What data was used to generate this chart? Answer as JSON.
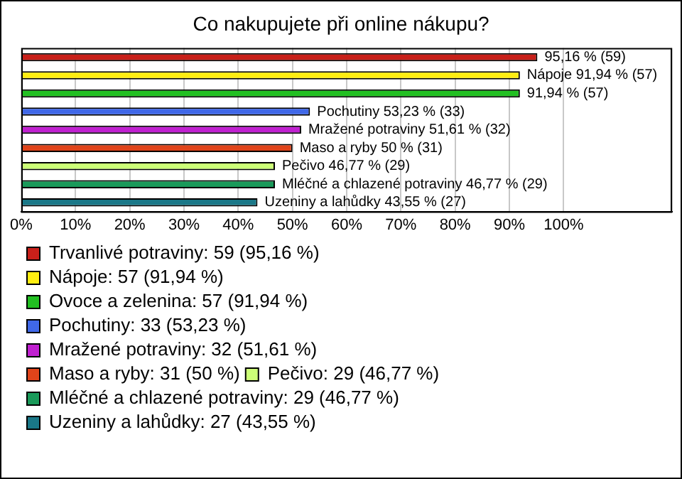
{
  "chart_data": {
    "type": "bar",
    "orientation": "horizontal",
    "title": "Co nakupujete při online nákupu?",
    "categories": [
      null,
      null,
      null,
      null,
      null,
      null,
      null,
      null,
      null
    ],
    "series": [
      {
        "name": "Trvanlivé potraviny: 59 (95,16 %)",
        "color": "#c8201a",
        "values": [
          95.16,
          null,
          null,
          null,
          null,
          null,
          null,
          null,
          null
        ],
        "value_labels": [
          "95,16 % (59)",
          null,
          null,
          null,
          null,
          null,
          null,
          null,
          null
        ]
      },
      {
        "name": "Nápoje: 57 (91,94 %)",
        "color": "#ffee11",
        "values": [
          null,
          91.94,
          null,
          null,
          null,
          null,
          null,
          null,
          null
        ],
        "value_labels": [
          null,
          "Nápoje 91,94 % (57)",
          null,
          null,
          null,
          null,
          null,
          null,
          null
        ]
      },
      {
        "name": "Ovoce a zelenina: 57 (91,94 %)",
        "color": "#22c022",
        "values": [
          null,
          null,
          91.94,
          null,
          null,
          null,
          null,
          null,
          null
        ],
        "value_labels": [
          null,
          null,
          "91,94 % (57)",
          null,
          null,
          null,
          null,
          null,
          null
        ]
      },
      {
        "name": "Pochutiny: 33 (53,23 %)",
        "color": "#4068e8",
        "values": [
          null,
          null,
          null,
          53.23,
          null,
          null,
          null,
          null,
          null
        ],
        "value_labels": [
          null,
          null,
          null,
          "Pochutiny 53,23 % (33)",
          null,
          null,
          null,
          null,
          null
        ]
      },
      {
        "name": "Mražené potraviny: 32 (51,61 %)",
        "color": "#c020d0",
        "values": [
          null,
          null,
          null,
          null,
          51.61,
          null,
          null,
          null,
          null
        ],
        "value_labels": [
          null,
          null,
          null,
          null,
          "Mražené potraviny 51,61 % (32)",
          null,
          null,
          null,
          null
        ]
      },
      {
        "name": "Maso a ryby: 31 (50 %)",
        "color": "#e0441a",
        "values": [
          null,
          null,
          null,
          null,
          null,
          50,
          null,
          null,
          null
        ],
        "value_labels": [
          null,
          null,
          null,
          null,
          null,
          "Maso a ryby 50 % (31)",
          null,
          null,
          null
        ]
      },
      {
        "name": "Pečivo: 29 (46,77 %)",
        "color": "#ccff77",
        "values": [
          null,
          null,
          null,
          null,
          null,
          null,
          46.77,
          null,
          null
        ],
        "value_labels": [
          null,
          null,
          null,
          null,
          null,
          null,
          "Pečivo 46,77 % (29)",
          null,
          null
        ]
      },
      {
        "name": "Mléčné a chlazené potraviny: 29 (46,77 %)",
        "color": "#1a9a5a",
        "values": [
          null,
          null,
          null,
          null,
          null,
          null,
          null,
          46.77,
          null
        ],
        "value_labels": [
          null,
          null,
          null,
          null,
          null,
          null,
          null,
          "Mléčné a chlazené potraviny 46,77 % (29)",
          null
        ]
      },
      {
        "name": "Uzeniny a lahůdky: 27 (43,55 %)",
        "color": "#1a7888",
        "values": [
          null,
          null,
          null,
          null,
          null,
          null,
          null,
          null,
          43.55
        ],
        "value_labels": [
          null,
          null,
          null,
          null,
          null,
          null,
          null,
          null,
          "Uzeniny a lahůdky 43,55 % (27)"
        ]
      }
    ],
    "xlim": [
      0,
      120
    ],
    "xticks": [
      {
        "value": 0,
        "label": "0%"
      },
      {
        "value": 10,
        "label": "10%"
      },
      {
        "value": 20,
        "label": "20%"
      },
      {
        "value": 30,
        "label": "30%"
      },
      {
        "value": 40,
        "label": "40%"
      },
      {
        "value": 50,
        "label": "50%"
      },
      {
        "value": 60,
        "label": "60%"
      },
      {
        "value": 70,
        "label": "70%"
      },
      {
        "value": 80,
        "label": "80%"
      },
      {
        "value": 90,
        "label": "90%"
      },
      {
        "value": 100,
        "label": "100%"
      },
      {
        "value": 120,
        "label": null
      }
    ],
    "grid": "x",
    "legend": "bottom",
    "tick_labels": "x"
  }
}
